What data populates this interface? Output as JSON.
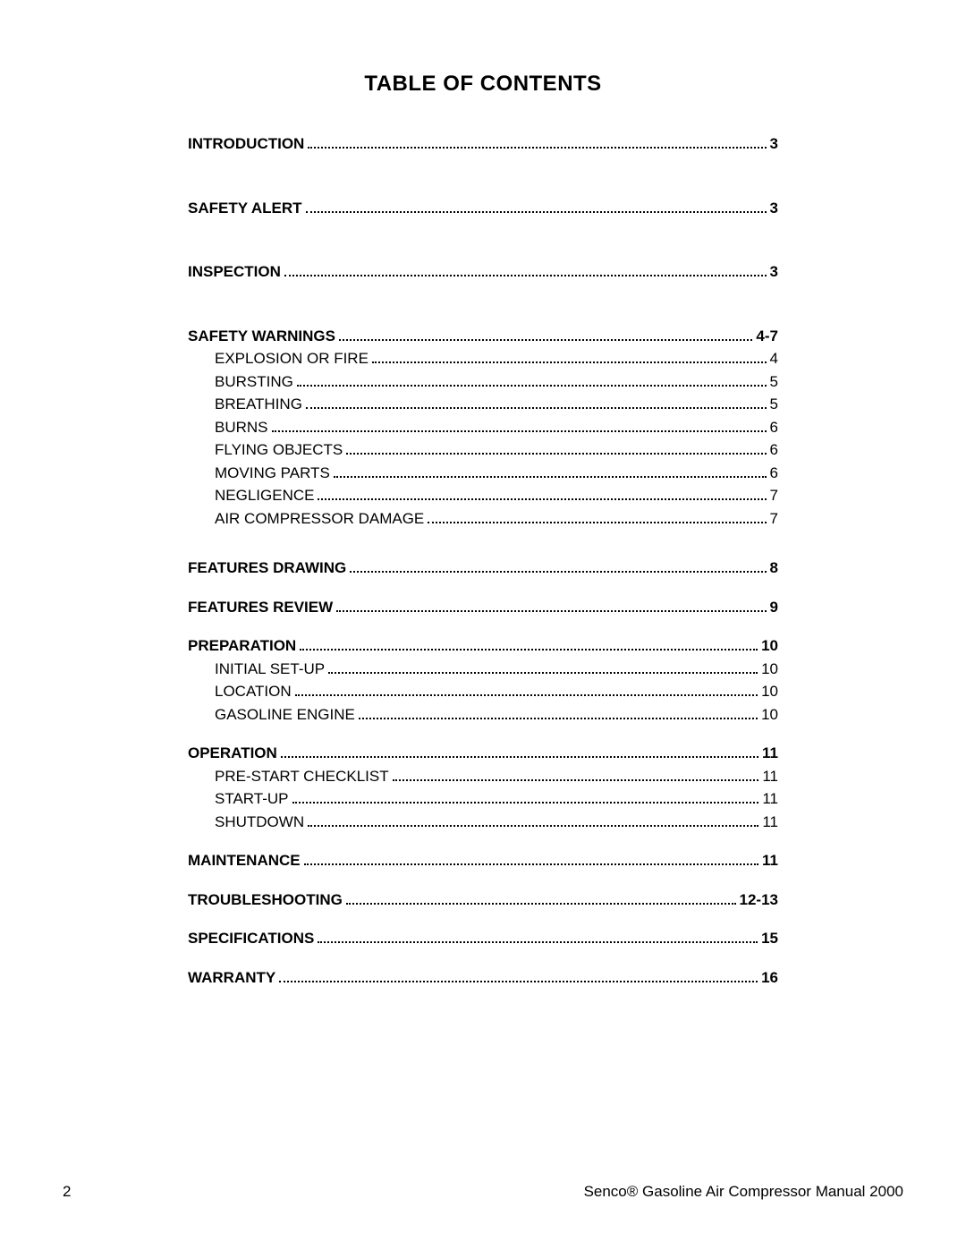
{
  "title": "TABLE OF CONTENTS",
  "toc": {
    "intro": {
      "label": "INTRODUCTION",
      "page": "3"
    },
    "safety_alert": {
      "label": "SAFETY ALERT",
      "page": "3"
    },
    "inspection": {
      "label": "INSPECTION",
      "page": "3"
    },
    "safety_warnings": {
      "label": "SAFETY WARNINGS",
      "page": "4-7",
      "items": [
        {
          "label": "EXPLOSION OR FIRE",
          "page": "4"
        },
        {
          "label": "BURSTING",
          "page": "5"
        },
        {
          "label": "BREATHING",
          "page": "5"
        },
        {
          "label": "BURNS",
          "page": "6"
        },
        {
          "label": "FLYING OBJECTS",
          "page": "6"
        },
        {
          "label": "MOVING PARTS",
          "page": "6"
        },
        {
          "label": "NEGLIGENCE",
          "page": "7"
        },
        {
          "label": "AIR COMPRESSOR DAMAGE",
          "page": "7"
        }
      ]
    },
    "features_drawing": {
      "label": "FEATURES DRAWING",
      "page": "8"
    },
    "features_review": {
      "label": "FEATURES REVIEW",
      "page": "9"
    },
    "preparation": {
      "label": "PREPARATION",
      "page": "10",
      "items": [
        {
          "label": "INITIAL SET-UP",
          "page": "10"
        },
        {
          "label": "LOCATION",
          "page": "10"
        },
        {
          "label": "GASOLINE ENGINE",
          "page": "10"
        }
      ]
    },
    "operation": {
      "label": "OPERATION",
      "page": "11",
      "items": [
        {
          "label": "PRE-START CHECKLIST",
          "page": "11"
        },
        {
          "label": "START-UP",
          "page": "11"
        },
        {
          "label": "SHUTDOWN",
          "page": "11"
        }
      ]
    },
    "maintenance": {
      "label": "MAINTENANCE",
      "page": "11"
    },
    "troubleshooting": {
      "label": "TROUBLESHOOTING",
      "page": "12-13"
    },
    "specifications": {
      "label": "SPECIFICATIONS",
      "page": "15"
    },
    "warranty": {
      "label": "WARRANTY",
      "page": "16"
    }
  },
  "footer": {
    "page_number": "2",
    "doc_title": "Senco® Gasoline Air Compressor Manual  2000"
  }
}
